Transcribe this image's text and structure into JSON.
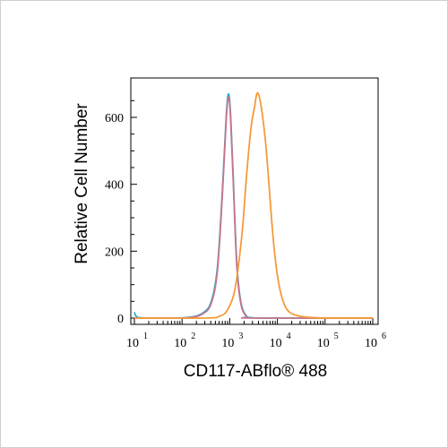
{
  "chart_data": {
    "type": "line",
    "title": "",
    "xlabel": "CD117-ABflo® 488",
    "ylabel": "Relative Cell Number",
    "x_scale": "log",
    "xlim": [
      10,
      1000000
    ],
    "ylim": [
      0,
      700
    ],
    "grid": false,
    "x_tick_labels": [
      {
        "base": "10",
        "exp": "1"
      },
      {
        "base": "10",
        "exp": "2"
      },
      {
        "base": "10",
        "exp": "3"
      },
      {
        "base": "10",
        "exp": "4"
      },
      {
        "base": "10",
        "exp": "5"
      },
      {
        "base": "10",
        "exp": "6"
      }
    ],
    "y_ticks": [
      0,
      200,
      400,
      600
    ],
    "series": [
      {
        "color": "#1fb0d8",
        "points": [
          [
            10,
            18
          ],
          [
            12,
            2
          ],
          [
            30,
            0
          ],
          [
            80,
            0
          ],
          [
            150,
            3
          ],
          [
            250,
            12
          ],
          [
            400,
            45
          ],
          [
            550,
            150
          ],
          [
            700,
            380
          ],
          [
            850,
            610
          ],
          [
            950,
            670
          ],
          [
            1050,
            600
          ],
          [
            1200,
            400
          ],
          [
            1400,
            170
          ],
          [
            1700,
            50
          ],
          [
            2200,
            8
          ],
          [
            3000,
            1
          ],
          [
            8000,
            0
          ],
          [
            1000000,
            0
          ]
        ]
      },
      {
        "color": "#c8758a",
        "points": [
          [
            10,
            0
          ],
          [
            80,
            0
          ],
          [
            150,
            2
          ],
          [
            250,
            10
          ],
          [
            400,
            40
          ],
          [
            550,
            140
          ],
          [
            700,
            370
          ],
          [
            850,
            600
          ],
          [
            950,
            660
          ],
          [
            1050,
            590
          ],
          [
            1200,
            390
          ],
          [
            1400,
            160
          ],
          [
            1700,
            45
          ],
          [
            2200,
            6
          ],
          [
            3000,
            0
          ],
          [
            1000000,
            0
          ]
        ]
      },
      {
        "color": "#f59a3a",
        "points": [
          [
            10,
            0
          ],
          [
            300,
            0
          ],
          [
            600,
            5
          ],
          [
            900,
            25
          ],
          [
            1300,
            90
          ],
          [
            1800,
            250
          ],
          [
            2300,
            440
          ],
          [
            2800,
            570
          ],
          [
            3300,
            630
          ],
          [
            3700,
            670
          ],
          [
            4100,
            665
          ],
          [
            4700,
            620
          ],
          [
            5600,
            530
          ],
          [
            6500,
            420
          ],
          [
            7800,
            270
          ],
          [
            9500,
            150
          ],
          [
            12000,
            70
          ],
          [
            16000,
            25
          ],
          [
            25000,
            8
          ],
          [
            50000,
            2
          ],
          [
            150000,
            0
          ],
          [
            1000000,
            0
          ]
        ]
      }
    ]
  }
}
